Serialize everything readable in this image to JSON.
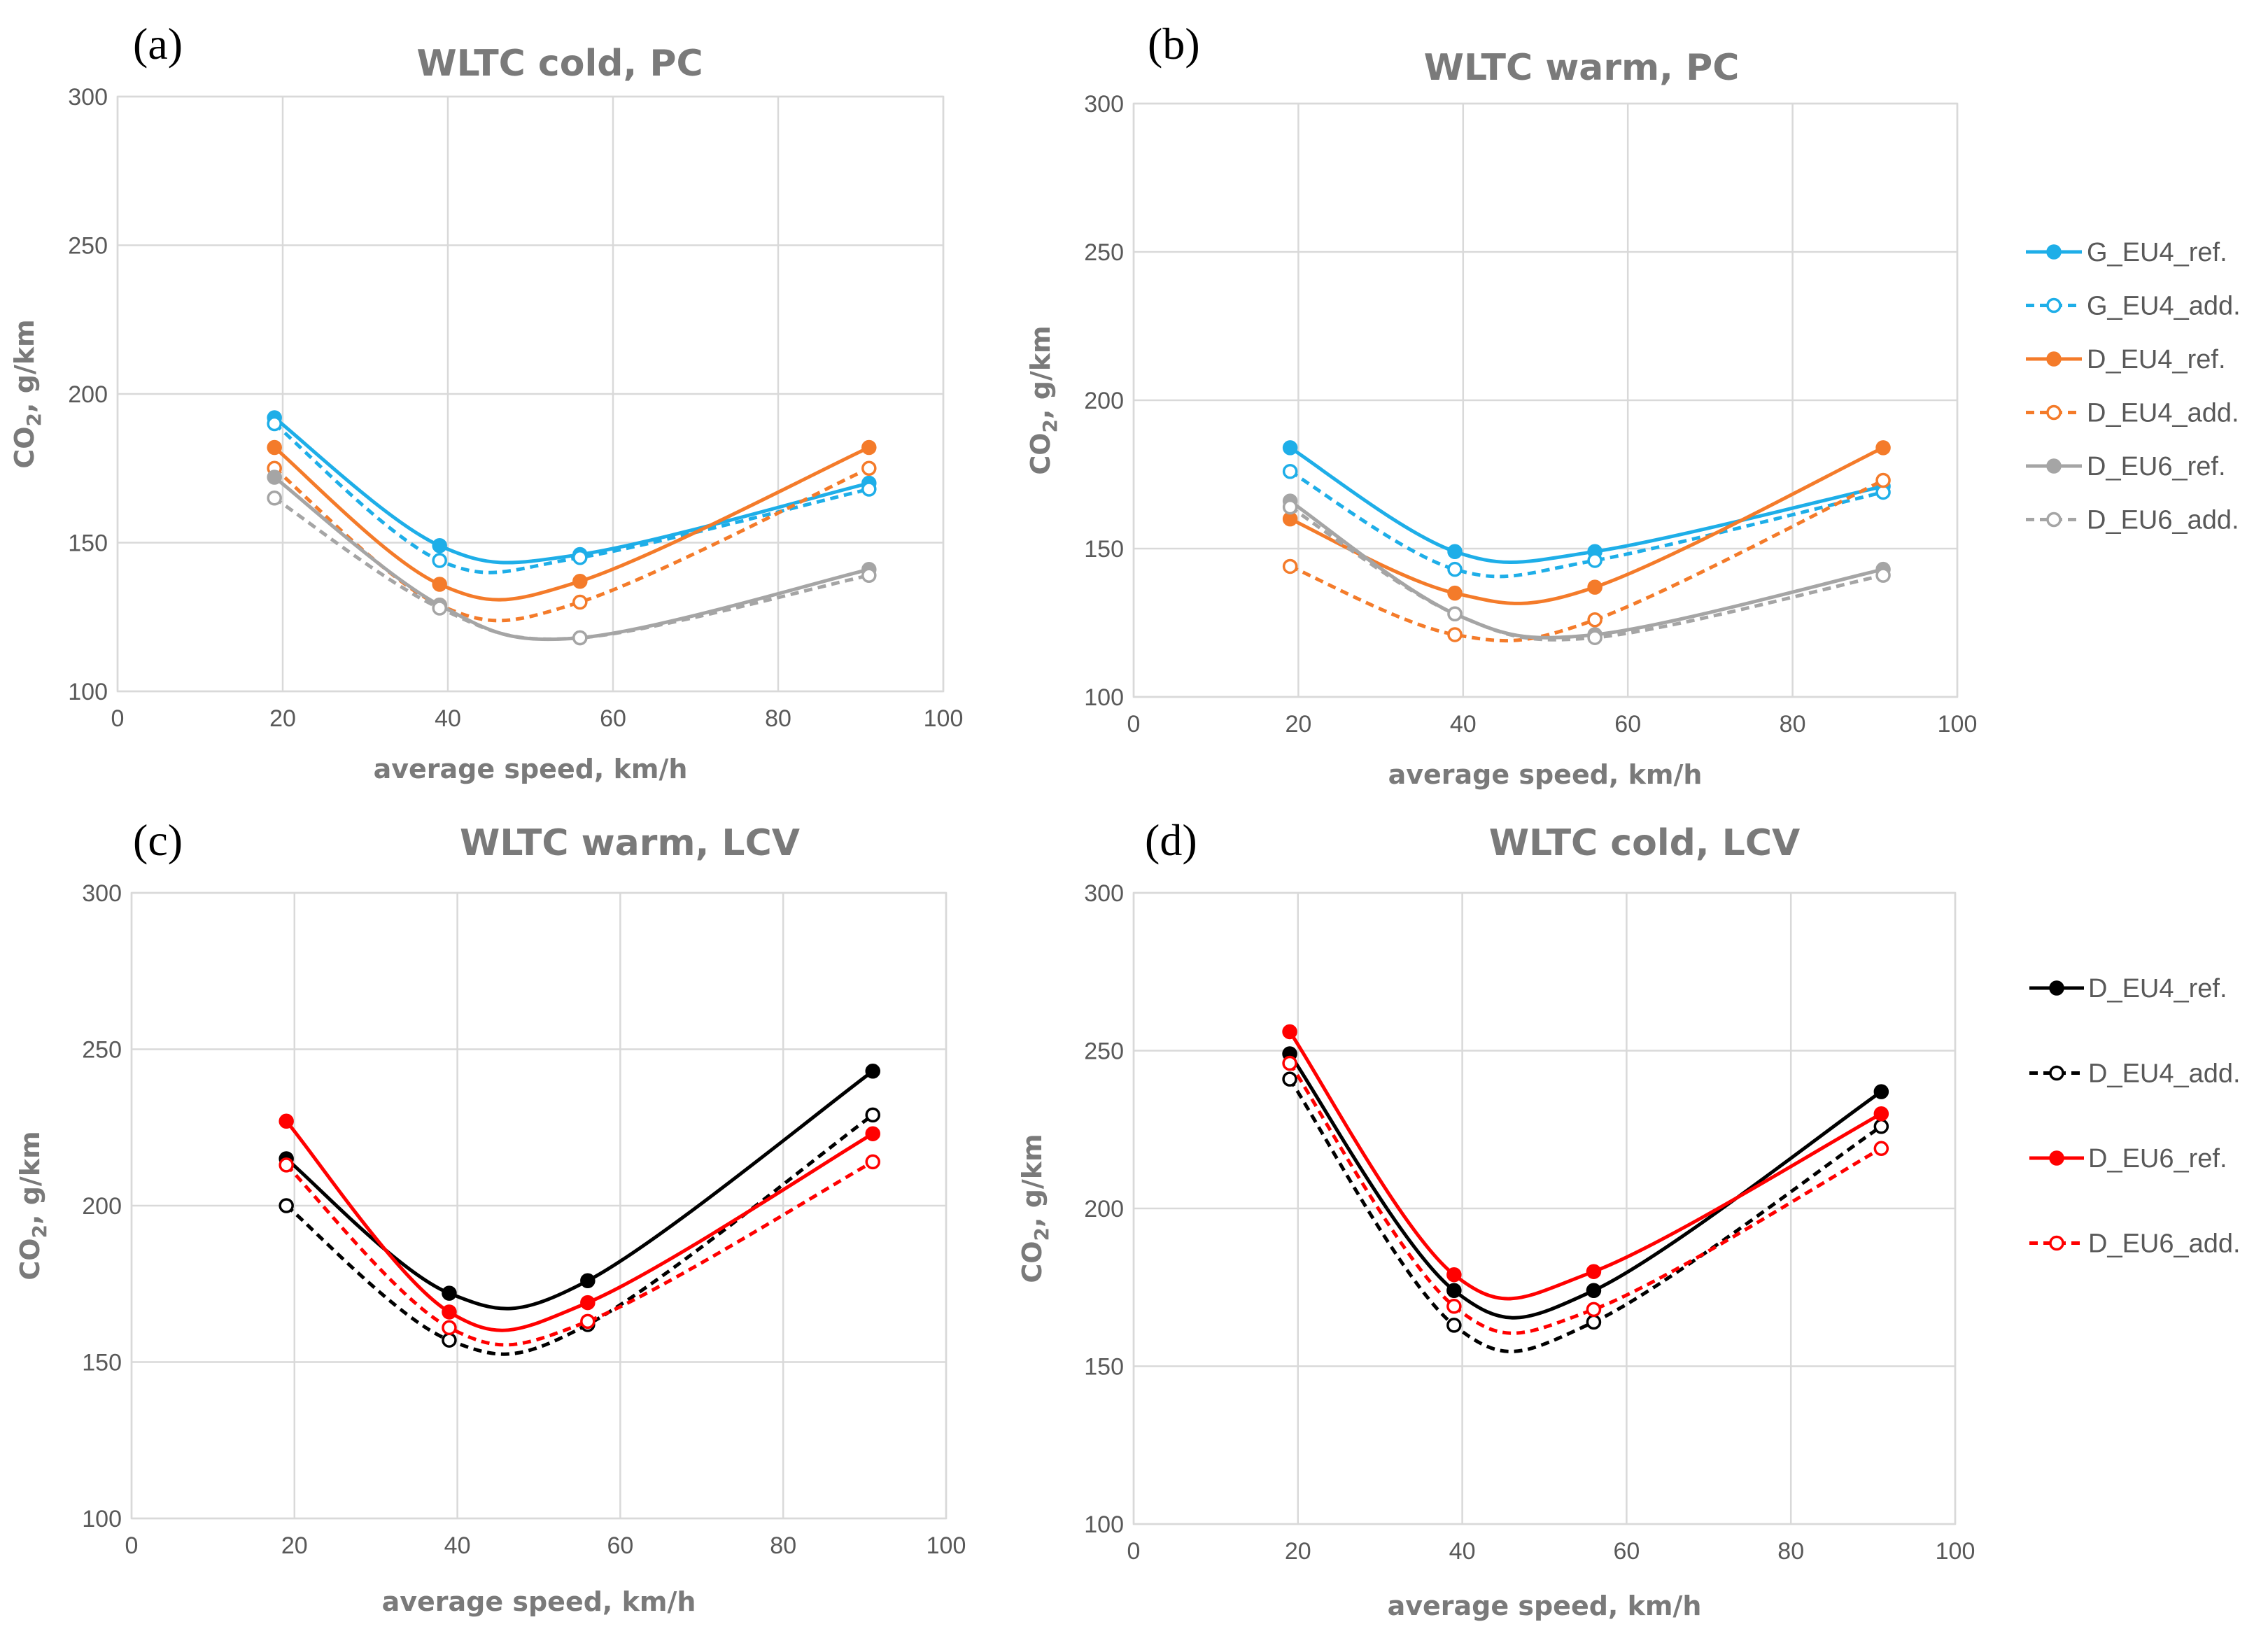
{
  "chart_data": [
    {
      "panel": "(a)",
      "type": "line",
      "title": "WLTC cold, PC",
      "xlabel": "average speed, km/h",
      "ylabel": "CO2, g/km",
      "xlim": [
        0,
        100
      ],
      "ylim": [
        100,
        300
      ],
      "xticks": [
        0,
        20,
        40,
        60,
        80,
        100
      ],
      "yticks": [
        100,
        150,
        200,
        250,
        300
      ],
      "x": [
        19,
        39,
        56,
        91
      ],
      "series": [
        {
          "name": "G_EU4_ref.",
          "values": [
            192,
            149,
            146,
            170
          ],
          "color": "#1eaee8",
          "dashed": false,
          "filled": true
        },
        {
          "name": "G_EU4_add.",
          "values": [
            190,
            144,
            145,
            168
          ],
          "color": "#1eaee8",
          "dashed": true,
          "filled": false
        },
        {
          "name": "D_EU4_ref.",
          "values": [
            182,
            136,
            137,
            182
          ],
          "color": "#f47b2a",
          "dashed": false,
          "filled": true
        },
        {
          "name": "D_EU4_add.",
          "values": [
            175,
            129,
            130,
            175
          ],
          "color": "#f47b2a",
          "dashed": true,
          "filled": false
        },
        {
          "name": "D_EU6_ref.",
          "values": [
            172,
            129,
            118,
            141
          ],
          "color": "#a5a5a5",
          "dashed": false,
          "filled": true
        },
        {
          "name": "D_EU6_add.",
          "values": [
            165,
            128,
            118,
            139
          ],
          "color": "#a5a5a5",
          "dashed": true,
          "filled": false
        }
      ]
    },
    {
      "panel": "(b)",
      "type": "line",
      "title": "WLTC warm, PC",
      "xlabel": "average speed, km/h",
      "ylabel": "CO2, g/km",
      "xlim": [
        0,
        100
      ],
      "ylim": [
        100,
        300
      ],
      "xticks": [
        0,
        20,
        40,
        60,
        80,
        100
      ],
      "yticks": [
        100,
        150,
        200,
        250,
        300
      ],
      "x": [
        19,
        39,
        56,
        91
      ],
      "series": [
        {
          "name": "G_EU4_ref.",
          "values": [
            184,
            149,
            149,
            171
          ],
          "color": "#1eaee8",
          "dashed": false,
          "filled": true
        },
        {
          "name": "G_EU4_add.",
          "values": [
            176,
            143,
            146,
            169
          ],
          "color": "#1eaee8",
          "dashed": true,
          "filled": false
        },
        {
          "name": "D_EU4_ref.",
          "values": [
            160,
            135,
            137,
            184
          ],
          "color": "#f47b2a",
          "dashed": false,
          "filled": true
        },
        {
          "name": "D_EU4_add.",
          "values": [
            144,
            121,
            126,
            173
          ],
          "color": "#f47b2a",
          "dashed": true,
          "filled": false
        },
        {
          "name": "D_EU6_ref.",
          "values": [
            166,
            128,
            121,
            143
          ],
          "color": "#a5a5a5",
          "dashed": false,
          "filled": true
        },
        {
          "name": "D_EU6_add.",
          "values": [
            164,
            128,
            120,
            141
          ],
          "color": "#a5a5a5",
          "dashed": true,
          "filled": false
        }
      ]
    },
    {
      "panel": "(c)",
      "type": "line",
      "title": "WLTC warm, LCV",
      "xlabel": "average speed, km/h",
      "ylabel": "CO2, g/km",
      "xlim": [
        0,
        100
      ],
      "ylim": [
        100,
        300
      ],
      "xticks": [
        0,
        20,
        40,
        60,
        80,
        100
      ],
      "yticks": [
        100,
        150,
        200,
        250,
        300
      ],
      "x": [
        19,
        39,
        56,
        91
      ],
      "series": [
        {
          "name": "D_EU4_ref.",
          "values": [
            215,
            172,
            176,
            243
          ],
          "color": "#000000",
          "dashed": false,
          "filled": true
        },
        {
          "name": "D_EU4_add.",
          "values": [
            200,
            157,
            162,
            229
          ],
          "color": "#000000",
          "dashed": true,
          "filled": false
        },
        {
          "name": "D_EU6_ref.",
          "values": [
            227,
            166,
            169,
            223
          ],
          "color": "#ff0000",
          "dashed": false,
          "filled": true
        },
        {
          "name": "D_EU6_add.",
          "values": [
            213,
            161,
            163,
            214
          ],
          "color": "#ff0000",
          "dashed": true,
          "filled": false
        }
      ]
    },
    {
      "panel": "(d)",
      "type": "line",
      "title": "WLTC cold, LCV",
      "xlabel": "average speed, km/h",
      "ylabel": "CO2, g/km",
      "xlim": [
        0,
        100
      ],
      "ylim": [
        100,
        300
      ],
      "xticks": [
        0,
        20,
        40,
        60,
        80,
        100
      ],
      "yticks": [
        100,
        150,
        200,
        250,
        300
      ],
      "x": [
        19,
        39,
        56,
        91
      ],
      "series": [
        {
          "name": "D_EU4_ref.",
          "values": [
            249,
            174,
            174,
            237
          ],
          "color": "#000000",
          "dashed": false,
          "filled": true
        },
        {
          "name": "D_EU4_add.",
          "values": [
            241,
            163,
            164,
            226
          ],
          "color": "#000000",
          "dashed": true,
          "filled": false
        },
        {
          "name": "D_EU6_ref.",
          "values": [
            256,
            179,
            180,
            230
          ],
          "color": "#ff0000",
          "dashed": false,
          "filled": true
        },
        {
          "name": "D_EU6_add.",
          "values": [
            246,
            169,
            168,
            219
          ],
          "color": "#ff0000",
          "dashed": true,
          "filled": false
        }
      ]
    }
  ],
  "legends": {
    "pc": [
      "G_EU4_ref.",
      "G_EU4_add.",
      "D_EU4_ref.",
      "D_EU4_add.",
      "D_EU6_ref.",
      "D_EU6_add."
    ],
    "lcv": [
      "D_EU4_ref.",
      "D_EU4_add.",
      "D_EU6_ref.",
      "D_EU6_add."
    ]
  }
}
